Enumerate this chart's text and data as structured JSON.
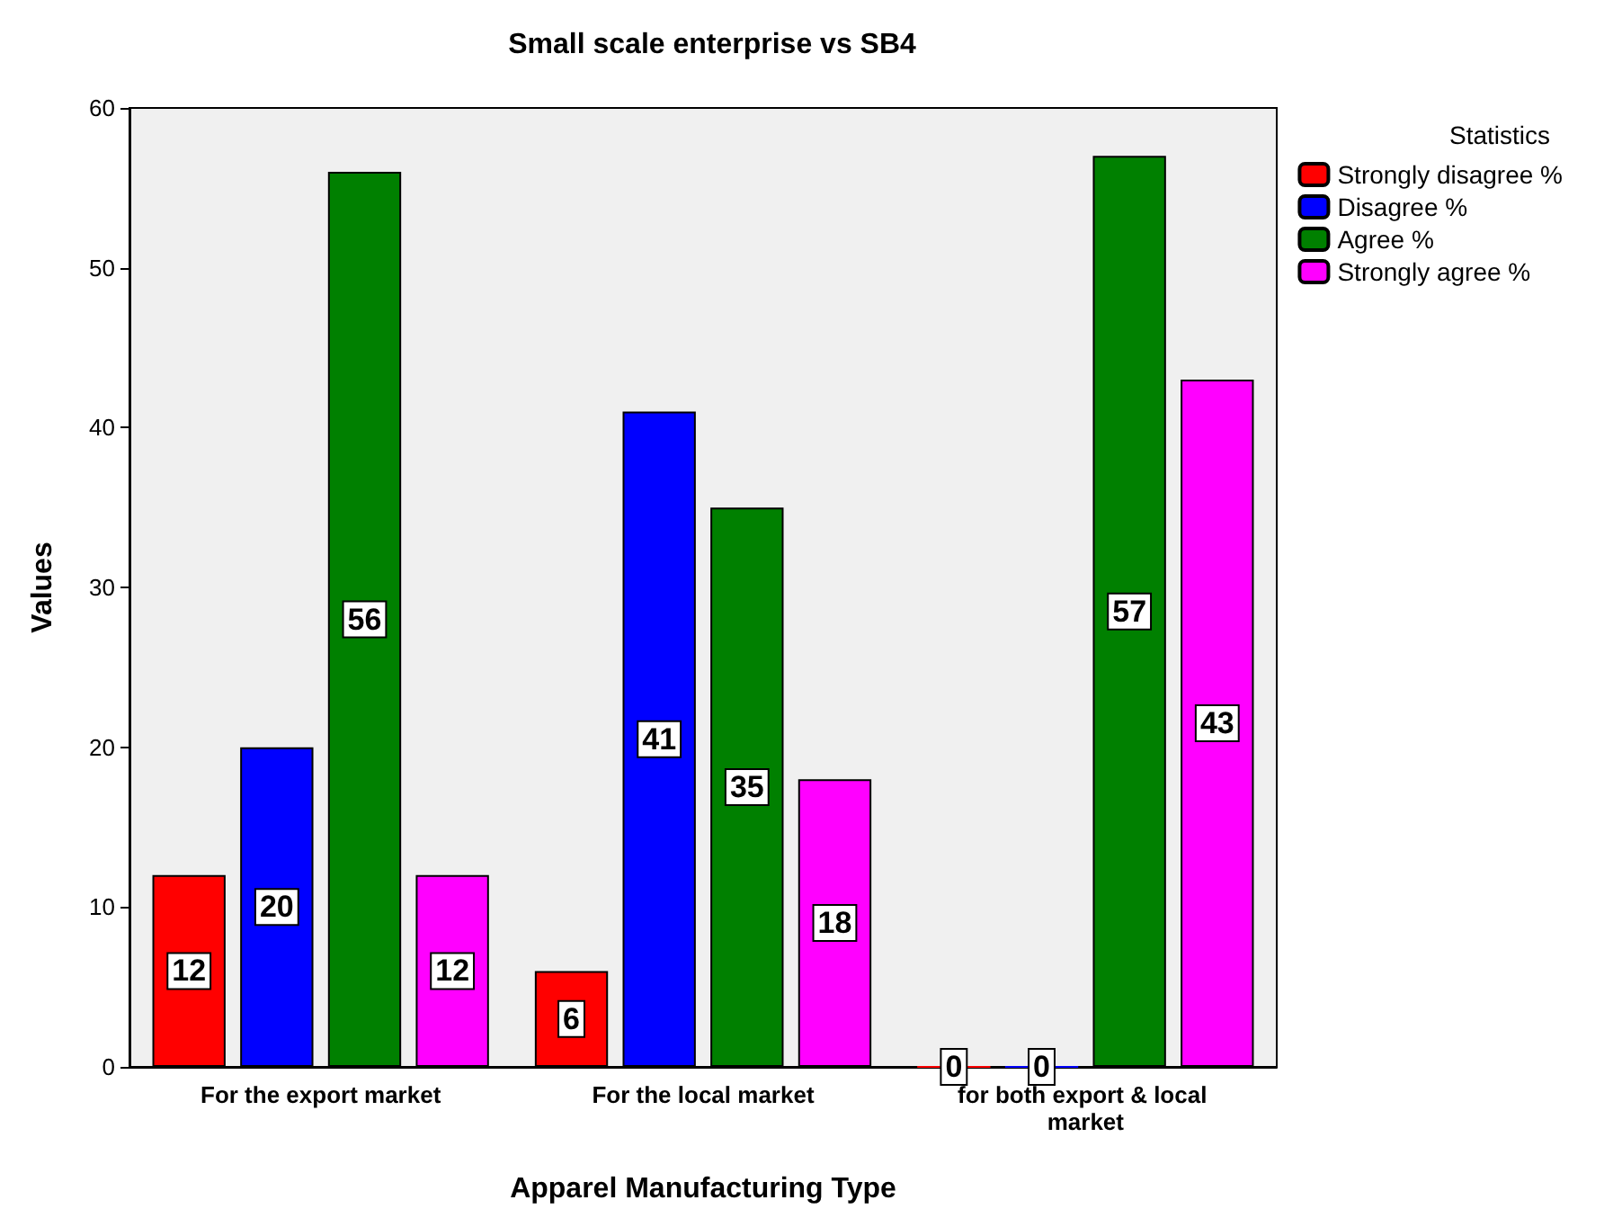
{
  "chart_data": {
    "type": "bar",
    "title": "Small scale enterprise vs SB4",
    "xlabel": "Apparel Manufacturing Type",
    "ylabel": "Values",
    "legend_title": "Statistics",
    "categories": [
      "For the export market",
      "For the local market",
      "for both export & local market"
    ],
    "series": [
      {
        "name": "Strongly disagree %",
        "color": "#ff0000",
        "values": [
          12,
          6,
          0
        ]
      },
      {
        "name": "Disagree %",
        "color": "#0000ff",
        "values": [
          20,
          41,
          0
        ]
      },
      {
        "name": "Agree %",
        "color": "#008000",
        "values": [
          56,
          35,
          57
        ]
      },
      {
        "name": "Strongly agree %",
        "color": "#ff00ff",
        "values": [
          12,
          18,
          43
        ]
      }
    ],
    "ylim": [
      0,
      60
    ],
    "yticks": [
      0,
      10,
      20,
      30,
      40,
      50,
      60
    ],
    "grid": false,
    "legend": "top right",
    "data_labels": true
  }
}
